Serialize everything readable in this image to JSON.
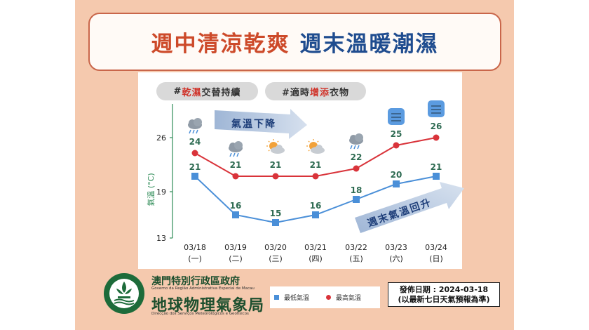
{
  "title": {
    "part1": "週中清涼乾爽",
    "part2": "週末溫暖潮濕"
  },
  "tags": [
    {
      "prefix": "#",
      "highlight": "乾濕",
      "rest": "交替持續"
    },
    {
      "prefix": "#適時",
      "highlight": "增添",
      "rest": "衣物"
    }
  ],
  "annotations": {
    "drop": "氣溫下降",
    "rise": "週末氣溫回升"
  },
  "colors": {
    "low": "#4a8fd8",
    "high": "#d9333a",
    "axis": "#2e8b57",
    "label": "#2e6b52"
  },
  "chart_data": {
    "type": "line",
    "ylabel": "氣溫 (°C)",
    "ylim": [
      13,
      28
    ],
    "yticks": [
      13,
      19,
      26
    ],
    "categories": [
      "03/18",
      "03/19",
      "03/20",
      "03/21",
      "03/22",
      "03/23",
      "03/24"
    ],
    "weekdays": [
      "(一)",
      "(二)",
      "(三)",
      "(四)",
      "(五)",
      "(六)",
      "(日)"
    ],
    "icons": [
      "rain-cloud-icon",
      "rain-cloud-icon",
      "partly-cloudy-icon",
      "partly-cloudy-icon",
      "rain-cloud-icon",
      "fog-icon",
      "fog-icon"
    ],
    "series": [
      {
        "name": "最高氣溫",
        "values": [
          24,
          21,
          21,
          21,
          22,
          25,
          26
        ]
      },
      {
        "name": "最低氣溫",
        "values": [
          21,
          16,
          15,
          16,
          18,
          20,
          21
        ]
      }
    ]
  },
  "footer": {
    "org_cn": "澳門特別行政區政府",
    "org_pt": "Governo da Região Administrativa Especial de Macau",
    "bureau_cn": "地球物理氣象局",
    "bureau_pt": "Direcção dos Serviços Meteorológicos e Geofísicos",
    "legend_low": "最低氣溫",
    "legend_high": "最高氣溫",
    "issue_date": "發佈日期 : 2024-03-18",
    "issue_note": "(以最新七日天氣預報為準)"
  }
}
